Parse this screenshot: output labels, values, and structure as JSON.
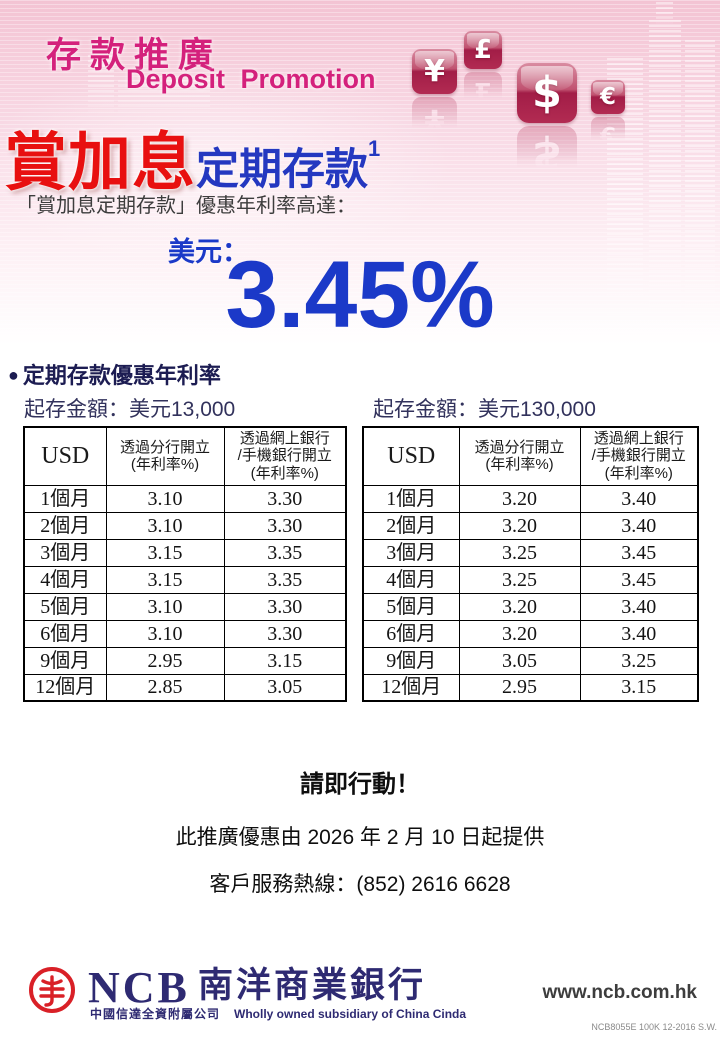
{
  "header": {
    "title_zh": "存款推廣",
    "title_en": "Deposit Promotion",
    "currency_badges": [
      {
        "symbol": "¥",
        "name": "yen"
      },
      {
        "symbol": "£",
        "name": "pound"
      },
      {
        "symbol": "$",
        "name": "dollar"
      },
      {
        "symbol": "€",
        "name": "euro"
      }
    ]
  },
  "promo": {
    "headline_red": "賞加息",
    "headline_blue": "定期存款",
    "headline_footnote": "1",
    "subline": "「賞加息定期存款」優惠年利率高達：",
    "currency_label": "美元：",
    "headline_rate": "3.45%"
  },
  "rates_section": {
    "bullet": "●",
    "heading": "定期存款優惠年利率",
    "tables": [
      {
        "caption": "起存金額：美元13,000",
        "columns": [
          "USD",
          "透過分行開立\n(年利率%)",
          "透過網上銀行\n/手機銀行開立\n(年利率%)"
        ],
        "rows": [
          [
            "1個月",
            "3.10",
            "3.30"
          ],
          [
            "2個月",
            "3.10",
            "3.30"
          ],
          [
            "3個月",
            "3.15",
            "3.35"
          ],
          [
            "4個月",
            "3.15",
            "3.35"
          ],
          [
            "5個月",
            "3.10",
            "3.30"
          ],
          [
            "6個月",
            "3.10",
            "3.30"
          ],
          [
            "9個月",
            "2.95",
            "3.15"
          ],
          [
            "12個月",
            "2.85",
            "3.05"
          ]
        ]
      },
      {
        "caption": "起存金額：美元130,000",
        "columns": [
          "USD",
          "透過分行開立\n(年利率%)",
          "透過網上銀行\n/手機銀行開立\n(年利率%)"
        ],
        "rows": [
          [
            "1個月",
            "3.20",
            "3.40"
          ],
          [
            "2個月",
            "3.20",
            "3.40"
          ],
          [
            "3個月",
            "3.25",
            "3.45"
          ],
          [
            "4個月",
            "3.25",
            "3.45"
          ],
          [
            "5個月",
            "3.20",
            "3.40"
          ],
          [
            "6個月",
            "3.20",
            "3.40"
          ],
          [
            "9個月",
            "3.05",
            "3.25"
          ],
          [
            "12個月",
            "2.95",
            "3.15"
          ]
        ]
      }
    ]
  },
  "cta": {
    "action": "請即行動！",
    "availability": "此推廣優惠由 2026 年 2 月 10 日起提供",
    "hotline": "客戶服務熱線：(852) 2616 6628"
  },
  "footer": {
    "bank_abbr": "NCB",
    "bank_name_zh": "南洋商業銀行",
    "subsidiary_zh": "中國信達全資附屬公司",
    "subsidiary_en": "Wholly owned subsidiary of China Cinda",
    "website": "www.ncb.com.hk",
    "print_code": "NCB8055E 100K 12-2016 S.W."
  },
  "colors": {
    "magenta": "#d4217c",
    "headline_red": "#e81010",
    "headline_blue": "#2438c0",
    "rate_blue": "#1b39c8",
    "section_navy": "#1c1c52",
    "footer_navy": "#2e2a72",
    "seal_red": "#d92027",
    "badge_crimson": "#b22b52"
  }
}
